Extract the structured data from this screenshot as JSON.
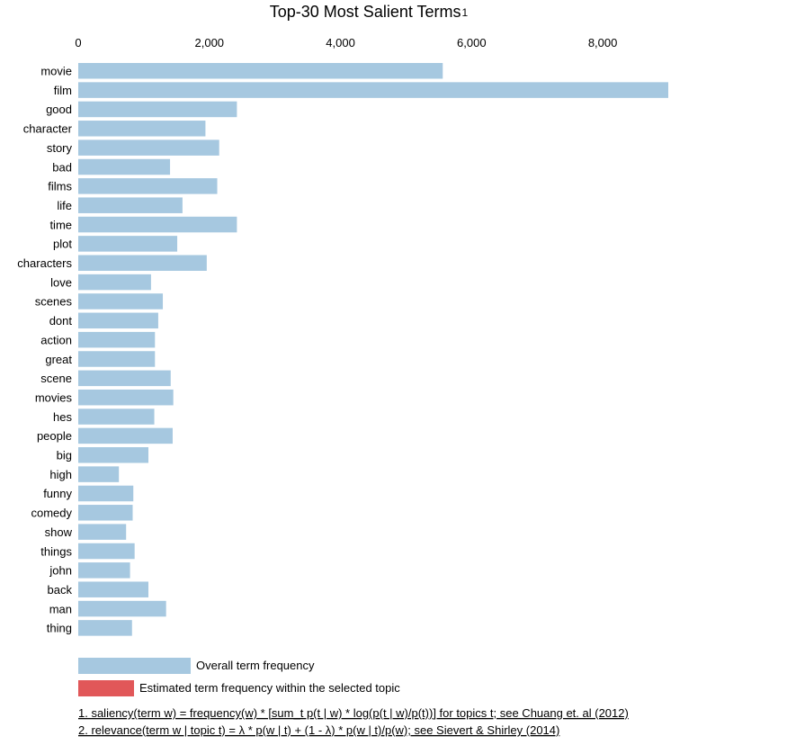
{
  "chart_data": {
    "type": "bar",
    "orientation": "horizontal",
    "title": "Top-30 Most Salient Terms",
    "title_superscript": "1",
    "x_ticks": [
      0,
      2000,
      4000,
      6000,
      8000
    ],
    "x_tick_labels": [
      "0",
      "2,000",
      "4,000",
      "6,000",
      "8,000"
    ],
    "xlim": [
      0,
      9000
    ],
    "axis_position": "top",
    "grid": false,
    "categories": [
      "movie",
      "film",
      "good",
      "character",
      "story",
      "bad",
      "films",
      "life",
      "time",
      "plot",
      "characters",
      "love",
      "scenes",
      "dont",
      "action",
      "great",
      "scene",
      "movies",
      "hes",
      "people",
      "big",
      "high",
      "funny",
      "comedy",
      "show",
      "things",
      "john",
      "back",
      "man",
      "thing"
    ],
    "series": [
      {
        "name": "Overall term frequency",
        "color": "#a6c8e0",
        "values": [
          5560,
          9000,
          2420,
          1940,
          2150,
          1400,
          2120,
          1590,
          2420,
          1510,
          1960,
          1110,
          1290,
          1220,
          1170,
          1170,
          1410,
          1450,
          1160,
          1440,
          1070,
          620,
          840,
          830,
          730,
          860,
          790,
          1070,
          1340,
          820
        ]
      }
    ],
    "legend": {
      "placement": "bottom-left",
      "items": [
        {
          "label": "Overall term frequency",
          "color": "#a6c8e0"
        },
        {
          "label": "Estimated term frequency within the selected topic",
          "color": "#e15759"
        }
      ]
    }
  },
  "footnotes": [
    "1. saliency(term w) = frequency(w) * [sum_t p(t | w) * log(p(t | w)/p(t))] for topics t; see Chuang et. al (2012)",
    "2. relevance(term w | topic t) = λ * p(w | t) + (1 - λ) * p(w | t)/p(w); see Sievert & Shirley (2014)"
  ]
}
